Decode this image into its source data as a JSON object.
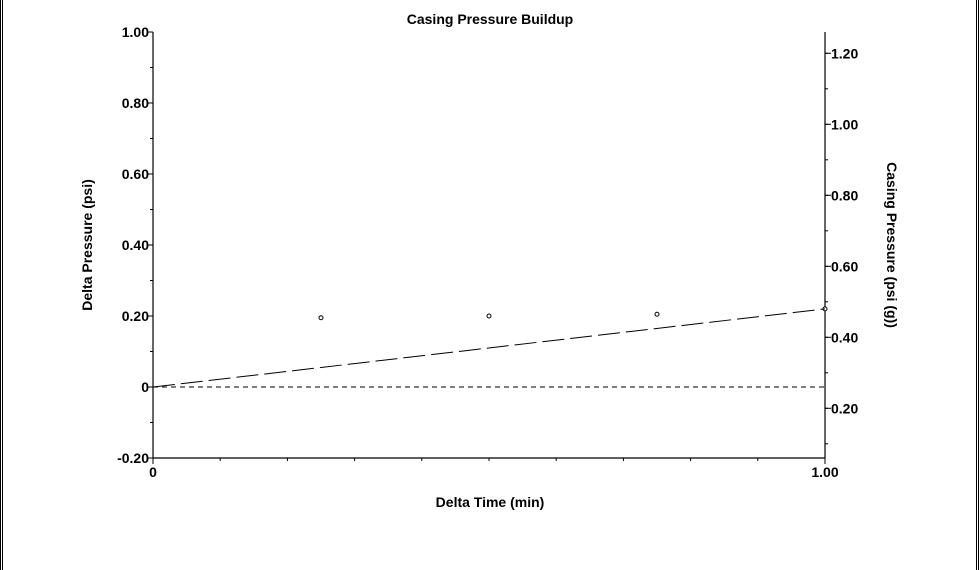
{
  "chart_data": {
    "type": "scatter",
    "title": "Casing Pressure Buildup",
    "xlabel": "Delta Time (min)",
    "ylabel": "Delta Pressure (psi)",
    "y2label": "Casing Pressure (psi (g))",
    "xlim": [
      0,
      1.0
    ],
    "ylim": [
      -0.2,
      1.0
    ],
    "y2lim": [
      0.06,
      1.26
    ],
    "x_ticks": [
      "0",
      "1.00"
    ],
    "x_tick_values": [
      0,
      1.0
    ],
    "y_ticks": [
      "1.00",
      "0.80",
      "0.60",
      "0.40",
      "0.20",
      "0",
      "-0.20"
    ],
    "y_tick_values": [
      1.0,
      0.8,
      0.6,
      0.4,
      0.2,
      0,
      -0.2
    ],
    "y2_ticks": [
      "1.20",
      "1.00",
      "0.80",
      "0.60",
      "0.40",
      "0.20"
    ],
    "y2_tick_values": [
      1.2,
      1.0,
      0.8,
      0.6,
      0.4,
      0.2
    ],
    "grid": false,
    "series": [
      {
        "kind": "points",
        "x": [
          0.25,
          0.5,
          0.75,
          1.0
        ],
        "y": [
          0.195,
          0.2,
          0.205,
          0.22
        ],
        "color": "#000000"
      },
      {
        "kind": "dashed-line",
        "x": [
          0,
          1.0
        ],
        "y": [
          0.0,
          0.22
        ],
        "color": "#000000"
      },
      {
        "kind": "baseline",
        "x": [
          0,
          1.0
        ],
        "y": [
          0,
          0
        ],
        "color": "#000000"
      }
    ]
  }
}
